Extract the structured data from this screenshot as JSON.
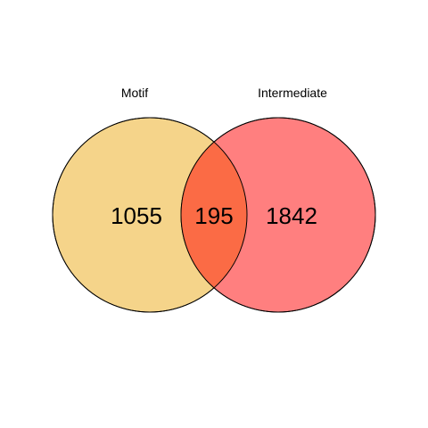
{
  "sets": [
    {
      "name": "Motif",
      "only_count": "1055",
      "color": "#f5d48a"
    },
    {
      "name": "Intermediate",
      "only_count": "1842",
      "color": "#ff7f7f"
    }
  ],
  "intersection": {
    "count": "195",
    "color": "#fb6b45"
  },
  "outline_color": "#000000"
}
